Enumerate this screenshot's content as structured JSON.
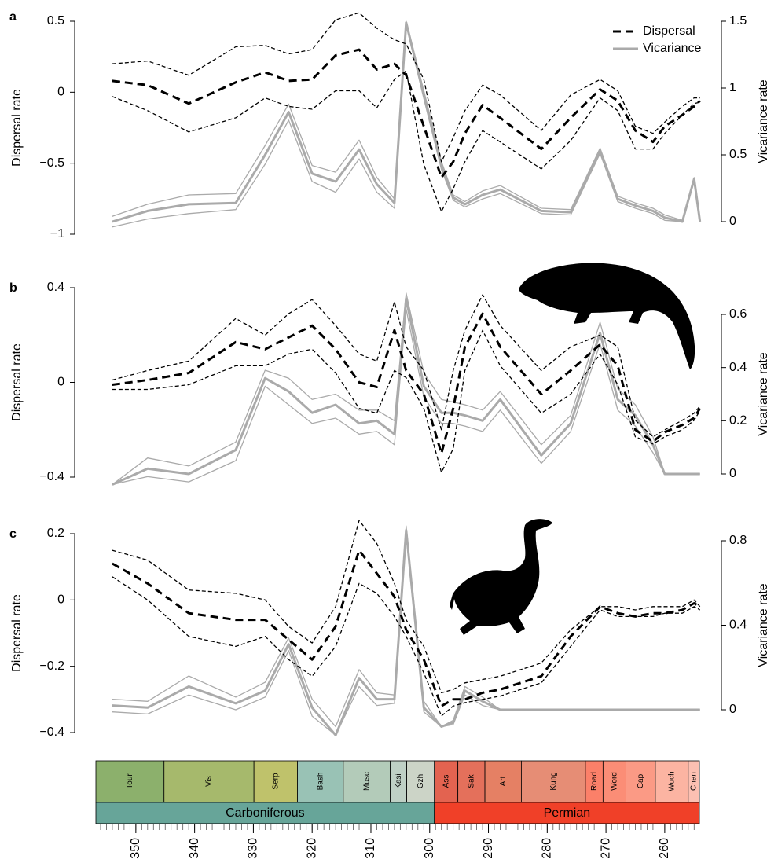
{
  "chart_data": [
    {
      "type": "line",
      "label": "a",
      "ylabel": "Dispersal rate",
      "y2label": "Vicariance rate",
      "legend": "top-right",
      "x": [
        354,
        348,
        341,
        333,
        328,
        324,
        320,
        316,
        312,
        309,
        306,
        304,
        301,
        298,
        296,
        294,
        291,
        288,
        281,
        276,
        271,
        268,
        265,
        262,
        260,
        257,
        255,
        254
      ],
      "xlim": [
        356.8,
        254.1
      ],
      "ylim": [
        -1,
        0.5
      ],
      "yticks": [
        {
          "value": -1,
          "label": "−1"
        },
        {
          "value": -0.5,
          "label": "−0.5"
        },
        0,
        0.5
      ],
      "y2lim": [
        0,
        1.5
      ],
      "y2ticks": [
        0,
        0.5,
        1,
        1.5
      ],
      "series": [
        {
          "name": "Dispersal",
          "color": "#000000",
          "style": "dashed",
          "values": [
            0.08,
            0.05,
            -0.08,
            0.07,
            0.14,
            0.08,
            0.09,
            0.26,
            0.3,
            0.16,
            0.2,
            0.12,
            -0.24,
            -0.6,
            -0.49,
            -0.29,
            -0.09,
            -0.18,
            -0.4,
            -0.18,
            0.02,
            -0.06,
            -0.27,
            -0.35,
            -0.24,
            -0.16,
            -0.1,
            -0.06
          ],
          "upper": [
            0.2,
            0.22,
            0.12,
            0.32,
            0.33,
            0.27,
            0.3,
            0.51,
            0.56,
            0.45,
            0.37,
            0.34,
            0.09,
            -0.49,
            -0.32,
            -0.13,
            0.05,
            -0.02,
            -0.27,
            -0.02,
            0.09,
            0.01,
            -0.24,
            -0.29,
            -0.21,
            -0.1,
            -0.04,
            -0.04
          ],
          "lower": [
            -0.03,
            -0.13,
            -0.28,
            -0.18,
            -0.04,
            -0.1,
            -0.12,
            0.01,
            0.01,
            -0.11,
            0.09,
            0.15,
            -0.51,
            -0.84,
            -0.68,
            -0.49,
            -0.27,
            -0.35,
            -0.54,
            -0.34,
            -0.04,
            -0.13,
            -0.4,
            -0.4,
            -0.29,
            -0.16,
            -0.08,
            -0.07
          ]
        },
        {
          "name": "Vicariance",
          "color": "#aaaaaa",
          "style": "solid",
          "axis": "y2",
          "values": [
            0.0,
            0.08,
            0.13,
            0.14,
            0.5,
            0.82,
            0.36,
            0.3,
            0.54,
            0.28,
            0.14,
            1.49,
            0.95,
            0.42,
            0.18,
            0.13,
            0.2,
            0.24,
            0.08,
            0.07,
            0.53,
            0.17,
            0.12,
            0.08,
            0.03,
            0.0,
            0.32,
            0.0
          ],
          "upper": [
            0.04,
            0.13,
            0.2,
            0.21,
            0.57,
            0.88,
            0.42,
            0.37,
            0.61,
            0.33,
            0.17,
            1.5,
            0.98,
            0.45,
            0.2,
            0.15,
            0.23,
            0.27,
            0.1,
            0.09,
            0.55,
            0.19,
            0.14,
            0.1,
            0.05,
            0.01,
            0.33,
            0.01
          ],
          "lower": [
            -0.04,
            0.02,
            0.06,
            0.09,
            0.43,
            0.76,
            0.3,
            0.22,
            0.47,
            0.22,
            0.1,
            1.47,
            0.92,
            0.39,
            0.16,
            0.11,
            0.17,
            0.21,
            0.06,
            0.05,
            0.51,
            0.15,
            0.1,
            0.06,
            0.01,
            0.0,
            0.3,
            0.0
          ]
        }
      ]
    },
    {
      "type": "line",
      "label": "b",
      "ylabel": "Dispersal rate",
      "y2label": "Vicariance rate",
      "x": [
        354,
        348,
        341,
        333,
        328,
        324,
        320,
        316,
        312,
        309,
        306,
        304,
        301,
        298,
        296,
        294,
        291,
        288,
        281,
        276,
        271,
        268,
        265,
        262,
        260,
        257,
        255,
        254
      ],
      "xlim": [
        356.8,
        254.1
      ],
      "ylim": [
        -0.4,
        0.4
      ],
      "yticks": [
        {
          "value": -0.4,
          "label": "−0.4"
        },
        0,
        0.4
      ],
      "y2lim": [
        0,
        0.6
      ],
      "y2ticks": [
        0,
        0.2,
        0.4,
        0.6
      ],
      "series": [
        {
          "color": "#000000",
          "style": "dashed",
          "values": [
            -0.01,
            0.01,
            0.04,
            0.17,
            0.14,
            0.19,
            0.24,
            0.14,
            0.0,
            -0.02,
            0.22,
            0.05,
            -0.05,
            -0.3,
            -0.11,
            0.15,
            0.29,
            0.15,
            -0.05,
            0.05,
            0.16,
            0.07,
            -0.2,
            -0.25,
            -0.21,
            -0.18,
            -0.15,
            -0.11
          ],
          "upper": [
            0.01,
            0.05,
            0.09,
            0.27,
            0.2,
            0.29,
            0.35,
            0.24,
            0.12,
            0.09,
            0.34,
            0.15,
            0.05,
            -0.2,
            0.05,
            0.22,
            0.37,
            0.24,
            0.05,
            0.15,
            0.2,
            0.15,
            -0.16,
            -0.23,
            -0.2,
            -0.16,
            -0.13,
            -0.1
          ],
          "lower": [
            -0.03,
            -0.03,
            -0.01,
            0.07,
            0.07,
            0.12,
            0.14,
            0.04,
            -0.11,
            -0.13,
            0.05,
            0.02,
            -0.11,
            -0.38,
            -0.28,
            0.05,
            0.22,
            0.07,
            -0.13,
            -0.05,
            0.12,
            -0.01,
            -0.23,
            -0.26,
            -0.23,
            -0.2,
            -0.16,
            -0.12
          ]
        },
        {
          "color": "#aaaaaa",
          "style": "solid",
          "axis": "y2",
          "values": [
            -0.04,
            0.02,
            0.0,
            0.09,
            0.36,
            0.31,
            0.23,
            0.26,
            0.19,
            0.2,
            0.15,
            0.66,
            0.33,
            0.23,
            0.23,
            0.22,
            0.2,
            0.28,
            0.07,
            0.19,
            0.53,
            0.28,
            0.22,
            0.11,
            0,
            0,
            0,
            0
          ],
          "upper": [
            -0.04,
            0.06,
            0.03,
            0.12,
            0.39,
            0.36,
            0.28,
            0.3,
            0.24,
            0.24,
            0.2,
            0.68,
            0.38,
            0.28,
            0.27,
            0.26,
            0.24,
            0.31,
            0.11,
            0.22,
            0.57,
            0.32,
            0.26,
            0.14,
            0,
            0,
            0,
            0
          ],
          "lower": [
            -0.04,
            -0.01,
            -0.03,
            0.05,
            0.33,
            0.26,
            0.19,
            0.21,
            0.15,
            0.16,
            0.11,
            0.62,
            0.29,
            0.19,
            0.19,
            0.18,
            0.16,
            0.24,
            0.04,
            0.16,
            0.49,
            0.24,
            0.18,
            0.08,
            0,
            0,
            0,
            0
          ]
        }
      ]
    },
    {
      "type": "line",
      "label": "c",
      "ylabel": "Dispersal rate",
      "y2label": "Vicariance rate",
      "x": [
        354,
        348,
        341,
        333,
        328,
        324,
        320,
        316,
        312,
        309,
        306,
        304,
        301,
        298,
        296,
        294,
        291,
        288,
        281,
        276,
        271,
        268,
        265,
        262,
        260,
        257,
        255,
        254
      ],
      "xlim": [
        356.8,
        254.1
      ],
      "ylim": [
        -0.4,
        0.2
      ],
      "yticks": [
        {
          "value": -0.4,
          "label": "−0.4"
        },
        {
          "value": -0.2,
          "label": "−0.2"
        },
        0,
        0.2
      ],
      "y2lim": [
        0,
        0.8
      ],
      "y2ticks": [
        0,
        0.4,
        0.8
      ],
      "series": [
        {
          "color": "#000000",
          "style": "dashed",
          "values": [
            0.11,
            0.05,
            -0.04,
            -0.06,
            -0.06,
            -0.12,
            -0.18,
            -0.08,
            0.15,
            0.08,
            0.01,
            -0.09,
            -0.18,
            -0.32,
            -0.3,
            -0.3,
            -0.28,
            -0.27,
            -0.23,
            -0.11,
            -0.02,
            -0.04,
            -0.05,
            -0.04,
            -0.04,
            -0.03,
            -0.01,
            -0.02
          ],
          "upper": [
            0.15,
            0.12,
            0.03,
            0.02,
            0.0,
            -0.08,
            -0.13,
            -0.02,
            0.24,
            0.17,
            0.05,
            -0.06,
            -0.14,
            -0.28,
            -0.27,
            -0.25,
            -0.24,
            -0.23,
            -0.19,
            -0.09,
            -0.02,
            -0.02,
            -0.03,
            -0.02,
            -0.02,
            -0.02,
            0.0,
            -0.02
          ],
          "lower": [
            0.07,
            0.0,
            -0.11,
            -0.14,
            -0.11,
            -0.18,
            -0.23,
            -0.14,
            0.05,
            0.02,
            -0.05,
            -0.11,
            -0.22,
            -0.35,
            -0.32,
            -0.31,
            -0.3,
            -0.29,
            -0.25,
            -0.14,
            -0.03,
            -0.05,
            -0.05,
            -0.05,
            -0.04,
            -0.04,
            -0.02,
            -0.03
          ]
        },
        {
          "color": "#aaaaaa",
          "style": "solid",
          "axis": "y2",
          "values": [
            0.02,
            0.01,
            0.11,
            0.03,
            0.09,
            0.31,
            0.01,
            -0.12,
            0.15,
            0.05,
            0.05,
            0.85,
            0.01,
            -0.08,
            -0.06,
            0.09,
            0.04,
            0,
            0,
            0,
            0,
            0,
            0,
            0,
            0,
            0,
            0,
            0
          ],
          "upper": [
            0.05,
            0.04,
            0.16,
            0.06,
            0.13,
            0.34,
            0.05,
            -0.08,
            0.19,
            0.08,
            0.07,
            0.87,
            0.04,
            -0.08,
            -0.05,
            0.11,
            0.06,
            0,
            0,
            0,
            0,
            0,
            0,
            0,
            0,
            0,
            0,
            0
          ],
          "lower": [
            -0.01,
            -0.02,
            0.07,
            0.0,
            0.06,
            0.28,
            -0.03,
            -0.12,
            0.11,
            0.02,
            0.03,
            0.83,
            -0.01,
            -0.08,
            -0.07,
            0.07,
            0.02,
            0,
            0,
            0,
            0,
            0,
            0,
            0,
            0,
            0,
            0,
            0
          ]
        }
      ]
    },
    {
      "type": "timescale",
      "xlim": [
        356.8,
        254.1
      ],
      "xticks": [
        350,
        340,
        330,
        320,
        310,
        300,
        290,
        280,
        270,
        260
      ],
      "minor_tick_step": 1,
      "stages": [
        {
          "name": "Tour",
          "start": 356.8,
          "end": 345.2,
          "color": "#8cb06c"
        },
        {
          "name": "Vis",
          "start": 345.2,
          "end": 329.9,
          "color": "#a6b96c"
        },
        {
          "name": "Serp",
          "start": 329.9,
          "end": 322.5,
          "color": "#bfc26b"
        },
        {
          "name": "Bash",
          "start": 322.5,
          "end": 314.7,
          "color": "#99c2b5"
        },
        {
          "name": "Mosc",
          "start": 314.7,
          "end": 306.7,
          "color": "#b3cbb9"
        },
        {
          "name": "Kasi",
          "start": 306.7,
          "end": 303.9,
          "color": "#bfd0c5"
        },
        {
          "name": "Gzh",
          "start": 303.9,
          "end": 299.2,
          "color": "#ccd4c7"
        },
        {
          "name": "Ass",
          "start": 299.2,
          "end": 295.2,
          "color": "#e36350"
        },
        {
          "name": "Sak",
          "start": 295.2,
          "end": 290.6,
          "color": "#e4705b"
        },
        {
          "name": "Art",
          "start": 290.6,
          "end": 284.4,
          "color": "#e58064"
        },
        {
          "name": "Kung",
          "start": 284.4,
          "end": 273.5,
          "color": "#e68d75"
        },
        {
          "name": "Road",
          "start": 273.5,
          "end": 270.5,
          "color": "#fb8069"
        },
        {
          "name": "Word",
          "start": 270.5,
          "end": 266.6,
          "color": "#fb8d76"
        },
        {
          "name": "Cap",
          "start": 266.6,
          "end": 261.6,
          "color": "#fb9a85"
        },
        {
          "name": "Wuch",
          "start": 261.6,
          "end": 256.0,
          "color": "#fcb4a2"
        },
        {
          "name": "Chan",
          "start": 256.0,
          "end": 254.1,
          "color": "#fcc0b2"
        }
      ],
      "periods": [
        {
          "name": "Carboniferous",
          "start": 356.8,
          "end": 299.2,
          "color": "#67a599"
        },
        {
          "name": "Permian",
          "start": 299.2,
          "end": 254.1,
          "color": "#f04028"
        }
      ]
    }
  ]
}
